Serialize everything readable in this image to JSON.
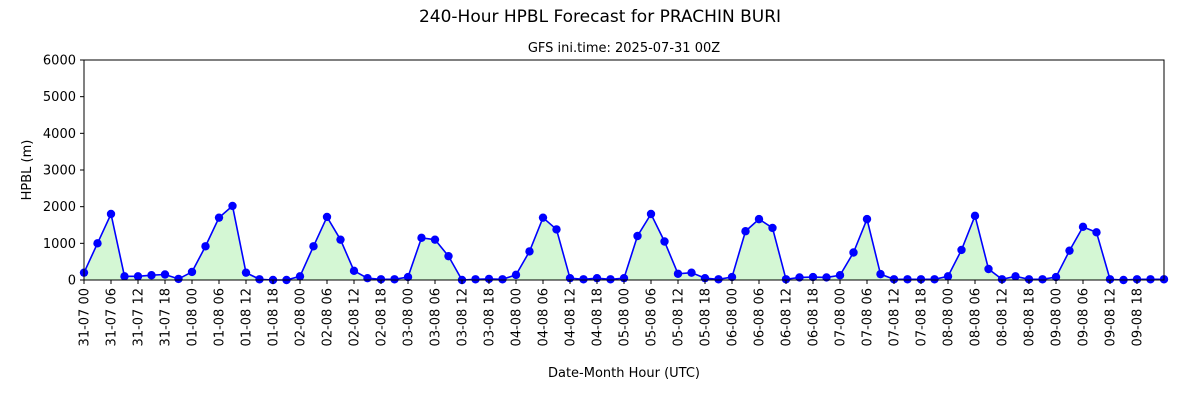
{
  "chart_data": {
    "type": "line",
    "title": "240-Hour HPBL Forecast for PRACHIN BURI",
    "subtitle": "GFS ini.time: 2025-07-31 00Z",
    "xlabel": "Date-Month Hour (UTC)",
    "ylabel": "HPBL (m)",
    "ylim": [
      0,
      6000
    ],
    "yticks": [
      0,
      1000,
      2000,
      3000,
      4000,
      5000,
      6000
    ],
    "grid": false,
    "line_color": "#0000ff",
    "marker_color": "#0000ff",
    "fill_color": "#d4f7d4",
    "x": [
      "31-07 00",
      "31-07 03",
      "31-07 06",
      "31-07 09",
      "31-07 12",
      "31-07 15",
      "31-07 18",
      "31-07 21",
      "01-08 00",
      "01-08 03",
      "01-08 06",
      "01-08 09",
      "01-08 12",
      "01-08 15",
      "01-08 18",
      "01-08 21",
      "02-08 00",
      "02-08 03",
      "02-08 06",
      "02-08 09",
      "02-08 12",
      "02-08 15",
      "02-08 18",
      "02-08 21",
      "03-08 00",
      "03-08 03",
      "03-08 06",
      "03-08 09",
      "03-08 12",
      "03-08 15",
      "03-08 18",
      "03-08 21",
      "04-08 00",
      "04-08 03",
      "04-08 06",
      "04-08 09",
      "04-08 12",
      "04-08 15",
      "04-08 18",
      "04-08 21",
      "05-08 00",
      "05-08 03",
      "05-08 06",
      "05-08 09",
      "05-08 12",
      "05-08 15",
      "05-08 18",
      "05-08 21",
      "06-08 00",
      "06-08 03",
      "06-08 06",
      "06-08 09",
      "06-08 12",
      "06-08 15",
      "06-08 18",
      "06-08 21",
      "07-08 00",
      "07-08 03",
      "07-08 06",
      "07-08 09",
      "07-08 12",
      "07-08 15",
      "07-08 18",
      "07-08 21",
      "08-08 00",
      "08-08 03",
      "08-08 06",
      "08-08 09",
      "08-08 12",
      "08-08 15",
      "08-08 18",
      "08-08 21",
      "09-08 00",
      "09-08 03",
      "09-08 06",
      "09-08 09",
      "09-08 12",
      "09-08 15",
      "09-08 18",
      "09-08 21",
      "10-08 00"
    ],
    "xtick_labels": [
      "31-07 00",
      "31-07 06",
      "31-07 12",
      "31-07 18",
      "01-08 00",
      "01-08 06",
      "01-08 12",
      "01-08 18",
      "02-08 00",
      "02-08 06",
      "02-08 12",
      "02-08 18",
      "03-08 00",
      "03-08 06",
      "03-08 12",
      "03-08 18",
      "04-08 00",
      "04-08 06",
      "04-08 12",
      "04-08 18",
      "05-08 00",
      "05-08 06",
      "05-08 12",
      "05-08 18",
      "06-08 00",
      "06-08 06",
      "06-08 12",
      "06-08 18",
      "07-08 00",
      "07-08 06",
      "07-08 12",
      "07-08 18",
      "08-08 00",
      "08-08 06",
      "08-08 12",
      "08-08 18",
      "09-08 00",
      "09-08 06",
      "09-08 12",
      "09-08 18"
    ],
    "series": [
      {
        "values": [
          200,
          1000,
          1800,
          100,
          100,
          130,
          150,
          30,
          220,
          920,
          1700,
          2020,
          200,
          20,
          0,
          0,
          100,
          920,
          1720,
          1100,
          250,
          50,
          20,
          20,
          80,
          1150,
          1100,
          650,
          0,
          20,
          30,
          20,
          140,
          780,
          1700,
          1380,
          50,
          20,
          50,
          20,
          50,
          1200,
          1800,
          1050,
          170,
          200,
          50,
          20,
          80,
          1330,
          1660,
          1420,
          20,
          70,
          80,
          70,
          130,
          750,
          1660,
          160,
          20,
          20,
          20,
          20,
          100,
          820,
          1750,
          300,
          20,
          100,
          20,
          20,
          80,
          800,
          1450,
          1300,
          20,
          0,
          20,
          20,
          20
        ]
      }
    ]
  }
}
